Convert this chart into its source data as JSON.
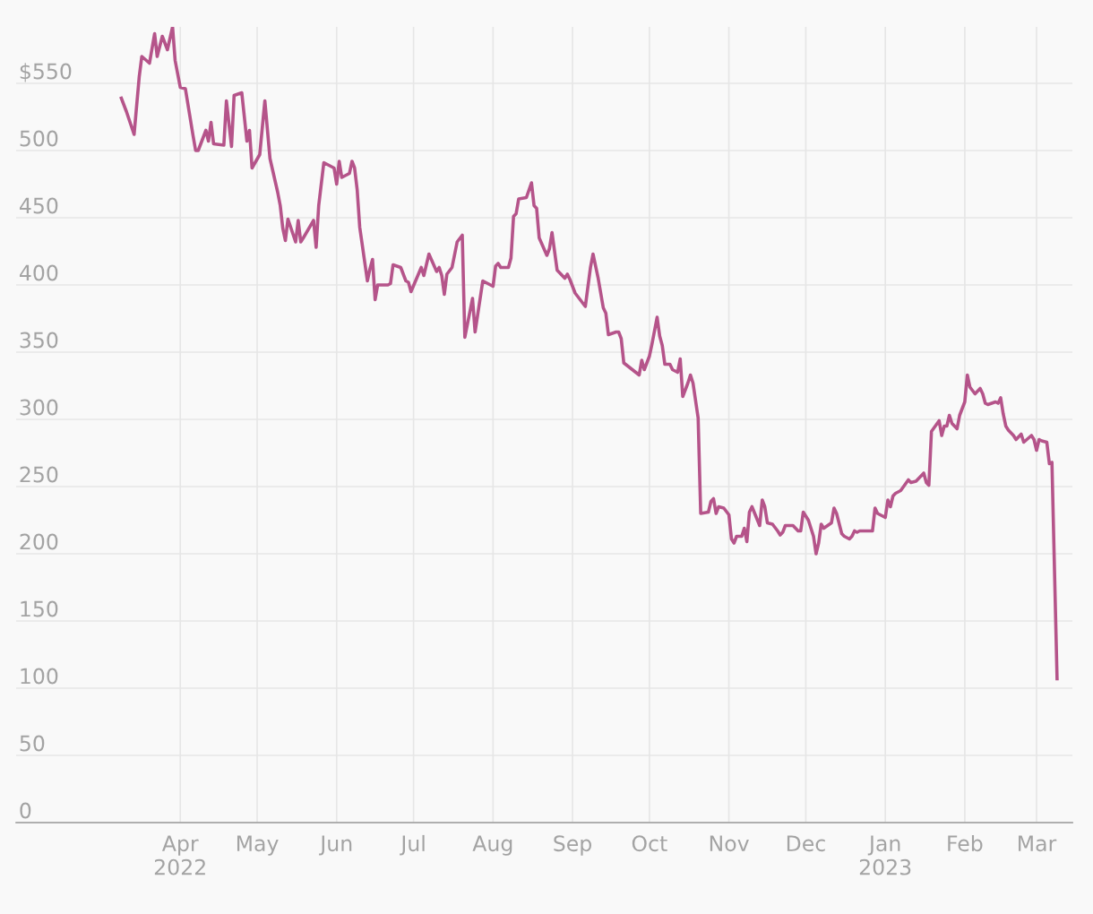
{
  "chart_data": {
    "type": "line",
    "x": [
      "2022-03-09",
      "2022-03-11",
      "2022-03-14",
      "2022-03-16",
      "2022-03-17",
      "2022-03-20",
      "2022-03-22",
      "2022-03-23",
      "2022-03-25",
      "2022-03-27",
      "2022-03-29",
      "2022-03-30",
      "2022-03-31",
      "2022-04-01",
      "2022-04-03",
      "2022-04-06",
      "2022-04-07",
      "2022-04-08",
      "2022-04-11",
      "2022-04-12",
      "2022-04-13",
      "2022-04-14",
      "2022-04-18",
      "2022-04-19",
      "2022-04-21",
      "2022-04-22",
      "2022-04-25",
      "2022-04-27",
      "2022-04-28",
      "2022-04-29",
      "2022-05-02",
      "2022-05-04",
      "2022-05-06",
      "2022-05-09",
      "2022-05-10",
      "2022-05-11",
      "2022-05-12",
      "2022-05-13",
      "2022-05-16",
      "2022-05-17",
      "2022-05-18",
      "2022-05-19",
      "2022-05-23",
      "2022-05-24",
      "2022-05-25",
      "2022-05-27",
      "2022-05-31",
      "2022-06-01",
      "2022-06-02",
      "2022-06-03",
      "2022-06-06",
      "2022-06-07",
      "2022-06-08",
      "2022-06-09",
      "2022-06-10",
      "2022-06-13",
      "2022-06-14",
      "2022-06-15",
      "2022-06-16",
      "2022-06-17",
      "2022-06-21",
      "2022-06-22",
      "2022-06-23",
      "2022-06-26",
      "2022-06-28",
      "2022-06-29",
      "2022-06-30",
      "2022-07-02",
      "2022-07-04",
      "2022-07-05",
      "2022-07-07",
      "2022-07-10",
      "2022-07-11",
      "2022-07-12",
      "2022-07-13",
      "2022-07-14",
      "2022-07-16",
      "2022-07-18",
      "2022-07-20",
      "2022-07-21",
      "2022-07-24",
      "2022-07-25",
      "2022-07-28",
      "2022-08-01",
      "2022-08-02",
      "2022-08-03",
      "2022-08-04",
      "2022-08-07",
      "2022-08-08",
      "2022-08-09",
      "2022-08-10",
      "2022-08-11",
      "2022-08-14",
      "2022-08-16",
      "2022-08-17",
      "2022-08-18",
      "2022-08-19",
      "2022-08-22",
      "2022-08-23",
      "2022-08-24",
      "2022-08-26",
      "2022-08-29",
      "2022-08-30",
      "2022-08-31",
      "2022-09-02",
      "2022-09-06",
      "2022-09-08",
      "2022-09-09",
      "2022-09-11",
      "2022-09-13",
      "2022-09-14",
      "2022-09-15",
      "2022-09-18",
      "2022-09-19",
      "2022-09-20",
      "2022-09-21",
      "2022-09-27",
      "2022-09-28",
      "2022-09-29",
      "2022-10-01",
      "2022-10-02",
      "2022-10-04",
      "2022-10-05",
      "2022-10-06",
      "2022-10-07",
      "2022-10-09",
      "2022-10-10",
      "2022-10-12",
      "2022-10-13",
      "2022-10-14",
      "2022-10-16",
      "2022-10-17",
      "2022-10-18",
      "2022-10-20",
      "2022-10-21",
      "2022-10-24",
      "2022-10-25",
      "2022-10-26",
      "2022-10-27",
      "2022-10-28",
      "2022-10-30",
      "2022-11-01",
      "2022-11-02",
      "2022-11-03",
      "2022-11-04",
      "2022-11-06",
      "2022-11-07",
      "2022-11-08",
      "2022-11-09",
      "2022-11-10",
      "2022-11-13",
      "2022-11-14",
      "2022-11-15",
      "2022-11-16",
      "2022-11-18",
      "2022-11-20",
      "2022-11-21",
      "2022-11-22",
      "2022-11-23",
      "2022-11-26",
      "2022-11-28",
      "2022-11-29",
      "2022-11-30",
      "2022-12-02",
      "2022-12-04",
      "2022-12-05",
      "2022-12-06",
      "2022-12-07",
      "2022-12-08",
      "2022-12-11",
      "2022-12-12",
      "2022-12-13",
      "2022-12-15",
      "2022-12-16",
      "2022-12-18",
      "2022-12-19",
      "2022-12-20",
      "2022-12-21",
      "2022-12-22",
      "2022-12-27",
      "2022-12-28",
      "2022-12-29",
      "2023-01-01",
      "2023-01-02",
      "2023-01-03",
      "2023-01-04",
      "2023-01-05",
      "2023-01-07",
      "2023-01-10",
      "2023-01-11",
      "2023-01-13",
      "2023-01-16",
      "2023-01-17",
      "2023-01-18",
      "2023-01-19",
      "2023-01-22",
      "2023-01-23",
      "2023-01-24",
      "2023-01-25",
      "2023-01-26",
      "2023-01-27",
      "2023-01-29",
      "2023-01-30",
      "2023-02-01",
      "2023-02-02",
      "2023-02-03",
      "2023-02-05",
      "2023-02-07",
      "2023-02-08",
      "2023-02-09",
      "2023-02-10",
      "2023-02-13",
      "2023-02-14",
      "2023-02-15",
      "2023-02-16",
      "2023-02-17",
      "2023-02-18",
      "2023-02-20",
      "2023-02-21",
      "2023-02-23",
      "2023-02-24",
      "2023-02-27",
      "2023-02-28",
      "2023-03-01",
      "2023-03-02",
      "2023-03-03",
      "2023-03-05",
      "2023-03-06",
      "2023-03-07",
      "2023-03-09"
    ],
    "series": [
      {
        "color": "#b5548a",
        "values": [
          539,
          529,
          512,
          555,
          570,
          565,
          587,
          570,
          585,
          575,
          592,
          567,
          557,
          547,
          546,
          511,
          500,
          500,
          515,
          507,
          521,
          505,
          504,
          537,
          503,
          541,
          543,
          507,
          515,
          487,
          497,
          537,
          494,
          469,
          459,
          442,
          433,
          449,
          432,
          448,
          432,
          435,
          448,
          428,
          459,
          491,
          487,
          475,
          492,
          480,
          483,
          492,
          487,
          471,
          443,
          403,
          412,
          419,
          389,
          400,
          400,
          401,
          415,
          413,
          403,
          402,
          395,
          404,
          413,
          407,
          423,
          410,
          413,
          407,
          393,
          408,
          413,
          432,
          437,
          361,
          390,
          365,
          403,
          399,
          414,
          416,
          413,
          413,
          420,
          451,
          453,
          464,
          465,
          476,
          459,
          457,
          435,
          422,
          427,
          439,
          411,
          405,
          408,
          404,
          394,
          384,
          413,
          423,
          405,
          383,
          379,
          363,
          365,
          365,
          360,
          342,
          333,
          344,
          337,
          347,
          356,
          376,
          362,
          355,
          341,
          341,
          337,
          335,
          345,
          317,
          327,
          333,
          327,
          301,
          230,
          231,
          239,
          241,
          230,
          235,
          234,
          229,
          211,
          208,
          213,
          213,
          219,
          209,
          231,
          235,
          221,
          240,
          235,
          223,
          222,
          217,
          214,
          216,
          221,
          221,
          217,
          217,
          231,
          225,
          213,
          200,
          208,
          222,
          219,
          223,
          234,
          230,
          215,
          213,
          211,
          213,
          217,
          216,
          217,
          217,
          234,
          230,
          227,
          240,
          235,
          243,
          245,
          247,
          255,
          253,
          254,
          260,
          253,
          251,
          291,
          299,
          288,
          295,
          295,
          303,
          297,
          293,
          303,
          313,
          333,
          324,
          319,
          323,
          319,
          312,
          311,
          313,
          312,
          316,
          304,
          295,
          292,
          288,
          285,
          289,
          283,
          288,
          285,
          277,
          285,
          284,
          283,
          267,
          268,
          107
        ]
      }
    ],
    "xlim": [
      "2022-01-27",
      "2023-03-15"
    ],
    "xticks": [
      {
        "value": "2022-04-01",
        "label": "Apr\n2022"
      },
      {
        "value": "2022-05-01",
        "label": "May"
      },
      {
        "value": "2022-06-01",
        "label": "Jun"
      },
      {
        "value": "2022-07-01",
        "label": "Jul"
      },
      {
        "value": "2022-08-01",
        "label": "Aug"
      },
      {
        "value": "2022-09-01",
        "label": "Sep"
      },
      {
        "value": "2022-10-01",
        "label": "Oct"
      },
      {
        "value": "2022-11-01",
        "label": "Nov"
      },
      {
        "value": "2022-12-01",
        "label": "Dec"
      },
      {
        "value": "2023-01-01",
        "label": "Jan\n2023"
      },
      {
        "value": "2023-02-01",
        "label": "Feb"
      },
      {
        "value": "2023-03-01",
        "label": "Mar"
      }
    ],
    "ylim": [
      0,
      592
    ],
    "yticks": [
      0,
      50,
      100,
      150,
      200,
      250,
      300,
      350,
      400,
      450,
      500,
      {
        "value": 550,
        "label": "$550"
      }
    ],
    "grid": true,
    "line_style": "solid",
    "marker": "none",
    "legend": false
  }
}
